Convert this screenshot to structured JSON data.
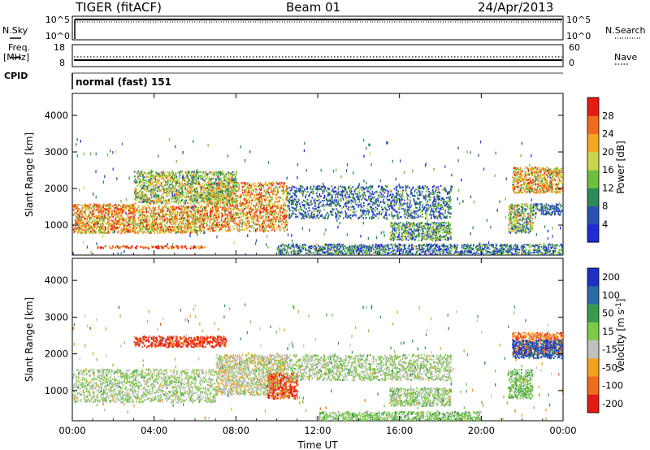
{
  "header": {
    "radar": "TIGER (fitACF)",
    "beam": "Beam 01",
    "date": "24/Apr/2013"
  },
  "noise_panel": {
    "left_label": "N.Sky",
    "right_label": "N.Search",
    "left_ticks": [
      "10^5",
      "10^0"
    ],
    "right_ticks": [
      "10^5",
      "10^0"
    ]
  },
  "freq_panel": {
    "left_label_1": "Freq.",
    "left_label_2": "[MHz]",
    "right_label": "Nave",
    "left_ticks": [
      "18",
      "8"
    ],
    "right_ticks": [
      "60",
      "0"
    ]
  },
  "cpid": {
    "label": "CPID",
    "value": "normal (fast) 151"
  },
  "colors": {
    "power_scale": [
      "#1f2bd9",
      "#2b52b3",
      "#2f8a5a",
      "#6fbf3f",
      "#c9d64a",
      "#f5a623",
      "#f26a1b",
      "#e81a12"
    ],
    "velocity_scale": [
      "#1d2fc4",
      "#2c6aa5",
      "#3a9a4e",
      "#7ccb47",
      "#c0c0bc",
      "#f4a21e",
      "#f26b1c",
      "#e61a12"
    ]
  },
  "chart_data": [
    {
      "type": "heatmap",
      "title": "Power",
      "ylabel": "Slant Range [km]",
      "xlabel": "",
      "x_ticks": [
        "00:00",
        "04:00",
        "08:00",
        "12:00",
        "16:00",
        "20:00",
        "00:00"
      ],
      "y_ticks": [
        1000,
        2000,
        3000,
        4000
      ],
      "xlim_hours": [
        0,
        24
      ],
      "ylim_km": [
        180,
        4600
      ],
      "colorbar": {
        "label": "Power [dB]",
        "ticks": [
          "4",
          "8",
          "12",
          "16",
          "20",
          "24",
          "28"
        ],
        "range": [
          0,
          30
        ]
      },
      "echo_regions": [
        {
          "t_start": 0.0,
          "t_end": 3.0,
          "r_min": 800,
          "r_max": 1600,
          "value": 22
        },
        {
          "t_start": 3.0,
          "t_end": 6.5,
          "r_min": 800,
          "r_max": 1550,
          "value": 20
        },
        {
          "t_start": 6.5,
          "t_end": 10.5,
          "r_min": 850,
          "r_max": 2200,
          "value": 21
        },
        {
          "t_start": 3.0,
          "t_end": 8.0,
          "r_min": 1600,
          "r_max": 2500,
          "value": 15
        },
        {
          "t_start": 10.5,
          "t_end": 18.5,
          "r_min": 1200,
          "r_max": 2100,
          "value": 7
        },
        {
          "t_start": 15.5,
          "t_end": 18.5,
          "r_min": 600,
          "r_max": 1100,
          "value": 11
        },
        {
          "t_start": 21.5,
          "t_end": 24.0,
          "r_min": 1900,
          "r_max": 2600,
          "value": 20
        },
        {
          "t_start": 21.3,
          "t_end": 22.5,
          "r_min": 800,
          "r_max": 1600,
          "value": 14
        },
        {
          "t_start": 22.5,
          "t_end": 24.0,
          "r_min": 1300,
          "r_max": 1600,
          "value": 6
        },
        {
          "t_start": 1.2,
          "t_end": 6.5,
          "r_min": 380,
          "r_max": 450,
          "value": 27
        },
        {
          "t_start": 10.0,
          "t_end": 24.0,
          "r_min": 200,
          "r_max": 500,
          "value": 8
        }
      ]
    },
    {
      "type": "heatmap",
      "title": "Velocity",
      "ylabel": "Slant Range [km]",
      "xlabel": "Time UT",
      "x_ticks": [
        "00:00",
        "04:00",
        "08:00",
        "12:00",
        "16:00",
        "20:00",
        "00:00"
      ],
      "y_ticks": [
        1000,
        2000,
        3000,
        4000
      ],
      "xlim_hours": [
        0,
        24
      ],
      "ylim_km": [
        180,
        4600
      ],
      "colorbar": {
        "label": "Velocity [m s^-1]",
        "ticks": [
          "200",
          "100",
          "50",
          "15",
          "-15",
          "-50",
          "-100",
          "-200"
        ],
        "range": [
          -250,
          250
        ]
      },
      "echo_regions": [
        {
          "t_start": 0.0,
          "t_end": 7.0,
          "r_min": 700,
          "r_max": 1600,
          "value": 0
        },
        {
          "t_start": 7.0,
          "t_end": 10.5,
          "r_min": 900,
          "r_max": 2000,
          "value": -30
        },
        {
          "t_start": 3.0,
          "t_end": 7.5,
          "r_min": 2200,
          "r_max": 2500,
          "value": -200
        },
        {
          "t_start": 9.5,
          "t_end": 11.0,
          "r_min": 800,
          "r_max": 1500,
          "value": -180
        },
        {
          "t_start": 10.5,
          "t_end": 18.5,
          "r_min": 1300,
          "r_max": 2000,
          "value": 0
        },
        {
          "t_start": 15.5,
          "t_end": 18.5,
          "r_min": 600,
          "r_max": 1100,
          "value": 5
        },
        {
          "t_start": 21.5,
          "t_end": 24.0,
          "r_min": 2000,
          "r_max": 2600,
          "value": -150
        },
        {
          "t_start": 21.5,
          "t_end": 24.0,
          "r_min": 1900,
          "r_max": 2400,
          "value": 180
        },
        {
          "t_start": 21.3,
          "t_end": 22.5,
          "r_min": 800,
          "r_max": 1600,
          "value": 40
        },
        {
          "t_start": 12.0,
          "t_end": 20.0,
          "r_min": 200,
          "r_max": 450,
          "value": 30
        }
      ]
    }
  ]
}
